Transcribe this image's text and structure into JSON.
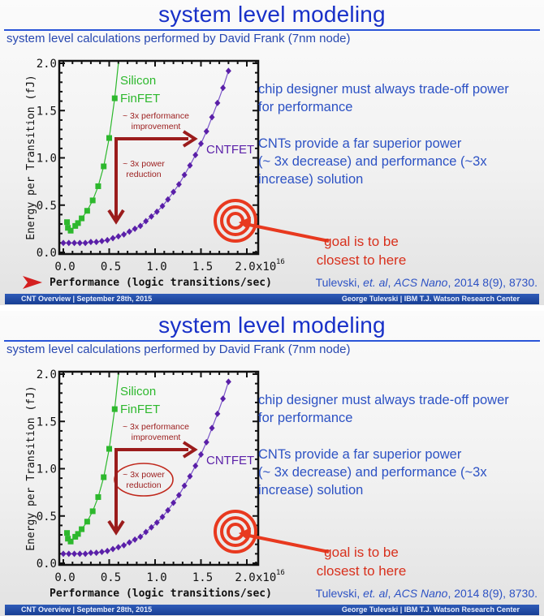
{
  "slides": [
    {
      "title": "system level modeling",
      "subtitle": "system level calculations performed by David Frank (7nm node)",
      "body": [
        "chip designer must always trade-off power",
        "for performance",
        "CNTs provide a far superior power",
        "(~ 3x decrease) and performance (~3x",
        "increase) solution"
      ],
      "goal": [
        "goal is to be",
        "closest to here"
      ],
      "citation": {
        "authors": "Tulevski, ",
        "etal": "et. al",
        "journal": "ACS Nano",
        "rest": ", 2014 8(9), 8730."
      },
      "footer_left": "CNT Overview | September 28th, 2015",
      "footer_right": "George Tulevski | IBM T.J. Watson Research Center",
      "x_axis_pointer": true,
      "power_reduction_circled": false
    },
    {
      "title": "system level modeling",
      "subtitle": "system level calculations performed by David Frank (7nm node)",
      "body": [
        "chip designer must always trade-off power",
        "for performance",
        "CNTs provide a far superior power",
        "(~ 3x decrease) and performance (~3x",
        "increase) solution"
      ],
      "goal": [
        "goal is to be",
        "closest to here"
      ],
      "citation": {
        "authors": "Tulevski, ",
        "etal": "et. al",
        "journal": "ACS Nano",
        "rest": ", 2014 8(9), 8730."
      },
      "footer_left": "CNT Overview | September 28th, 2015",
      "footer_right": "George Tulevski | IBM T.J. Watson Research Center",
      "x_axis_pointer": false,
      "power_reduction_circled": true
    }
  ],
  "colors": {
    "title": "#1830c8",
    "finfet": "#2db82d",
    "cntfet": "#5a1fa8",
    "annotation": "#9b1c1c",
    "target": "#e8391f"
  },
  "chart_data": [
    {
      "type": "scatter",
      "xlabel": "Performance (logic transitions/sec)",
      "x_multiplier": "x10",
      "x_exponent": "16",
      "ylabel": "Energy per Transition (fJ)",
      "xlim": [
        0,
        2.0
      ],
      "ylim": [
        0,
        2.0
      ],
      "x_ticks": [
        "0.0",
        "0.5",
        "1.0",
        "1.5",
        "2.0"
      ],
      "y_ticks": [
        "0.0",
        "0.5",
        "1.0",
        "1.5",
        "2.0"
      ],
      "grid": false,
      "annotations": {
        "perf": [
          "~ 3x performance",
          "improvement"
        ],
        "power": [
          "~ 3x power",
          "reduction"
        ]
      },
      "series": [
        {
          "name": "Silicon FinFET",
          "label_lines": [
            "Silicon",
            "FinFET"
          ],
          "marker": "square",
          "x": [
            0.04,
            0.05,
            0.08,
            0.13,
            0.16,
            0.2,
            0.26,
            0.32,
            0.38,
            0.44,
            0.5,
            0.56
          ],
          "y": [
            0.32,
            0.26,
            0.23,
            0.28,
            0.31,
            0.36,
            0.44,
            0.55,
            0.7,
            0.91,
            1.21,
            1.63
          ]
        },
        {
          "name": "CNTFET",
          "label_lines": [
            "CNTFET"
          ],
          "marker": "diamond",
          "x": [
            0,
            0.06,
            0.12,
            0.18,
            0.24,
            0.3,
            0.36,
            0.42,
            0.48,
            0.54,
            0.6,
            0.66,
            0.72,
            0.78,
            0.84,
            0.9,
            0.96,
            1.02,
            1.08,
            1.14,
            1.2,
            1.26,
            1.32,
            1.38,
            1.44,
            1.5,
            1.56,
            1.62,
            1.68,
            1.74,
            1.8
          ],
          "y": [
            0.1,
            0.1,
            0.1,
            0.1,
            0.1,
            0.11,
            0.11,
            0.12,
            0.13,
            0.15,
            0.17,
            0.19,
            0.22,
            0.25,
            0.28,
            0.33,
            0.38,
            0.43,
            0.49,
            0.56,
            0.64,
            0.72,
            0.82,
            0.92,
            1.03,
            1.15,
            1.28,
            1.43,
            1.58,
            1.74,
            1.92
          ]
        }
      ]
    },
    {
      "type": "scatter",
      "xlabel": "Performance (logic transitions/sec)",
      "x_multiplier": "x10",
      "x_exponent": "16",
      "ylabel": "Energy per Transition (fJ)",
      "xlim": [
        0,
        2.0
      ],
      "ylim": [
        0,
        2.0
      ],
      "x_ticks": [
        "0.0",
        "0.5",
        "1.0",
        "1.5",
        "2.0"
      ],
      "y_ticks": [
        "0.0",
        "0.5",
        "1.0",
        "1.5",
        "2.0"
      ],
      "grid": false,
      "annotations": {
        "perf": [
          "~ 3x performance",
          "improvement"
        ],
        "power": [
          "~ 3x power",
          "reduction"
        ]
      },
      "series": [
        {
          "name": "Silicon FinFET",
          "label_lines": [
            "Silicon",
            "FinFET"
          ],
          "marker": "square",
          "x": [
            0.04,
            0.05,
            0.08,
            0.13,
            0.16,
            0.2,
            0.26,
            0.32,
            0.38,
            0.44,
            0.5,
            0.56
          ],
          "y": [
            0.32,
            0.26,
            0.23,
            0.28,
            0.31,
            0.36,
            0.44,
            0.55,
            0.7,
            0.91,
            1.21,
            1.63
          ]
        },
        {
          "name": "CNTFET",
          "label_lines": [
            "CNTFET"
          ],
          "marker": "diamond",
          "x": [
            0,
            0.06,
            0.12,
            0.18,
            0.24,
            0.3,
            0.36,
            0.42,
            0.48,
            0.54,
            0.6,
            0.66,
            0.72,
            0.78,
            0.84,
            0.9,
            0.96,
            1.02,
            1.08,
            1.14,
            1.2,
            1.26,
            1.32,
            1.38,
            1.44,
            1.5,
            1.56,
            1.62,
            1.68,
            1.74,
            1.8
          ],
          "y": [
            0.1,
            0.1,
            0.1,
            0.1,
            0.1,
            0.11,
            0.11,
            0.12,
            0.13,
            0.15,
            0.17,
            0.19,
            0.22,
            0.25,
            0.28,
            0.33,
            0.38,
            0.43,
            0.49,
            0.56,
            0.64,
            0.72,
            0.82,
            0.92,
            1.03,
            1.15,
            1.28,
            1.43,
            1.58,
            1.74,
            1.92
          ]
        }
      ]
    }
  ]
}
